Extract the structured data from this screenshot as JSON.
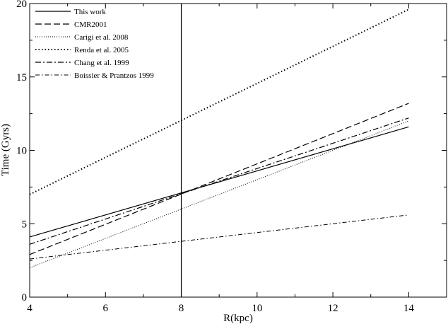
{
  "chart_data": {
    "type": "line",
    "title": "",
    "xlabel": "R(kpc)",
    "ylabel": "Time (Gyrs)",
    "xlim": [
      4,
      15
    ],
    "ylim": [
      0,
      20
    ],
    "xticks": [
      4,
      6,
      8,
      10,
      12,
      14
    ],
    "yticks": [
      0,
      5,
      10,
      15,
      20
    ],
    "grid": false,
    "legend_position": "top-left",
    "reference_line": {
      "x": 8
    },
    "series": [
      {
        "name": "This work",
        "style": "solid",
        "x": [
          4,
          14
        ],
        "y": [
          4.1,
          11.6
        ]
      },
      {
        "name": "CMR2001",
        "style": "dashed",
        "x": [
          4,
          14
        ],
        "y": [
          2.9,
          13.2
        ]
      },
      {
        "name": "Carigi et al. 2008",
        "style": "dotted-fine",
        "x": [
          4,
          14
        ],
        "y": [
          2.0,
          12.0
        ]
      },
      {
        "name": "Renda et al. 2005",
        "style": "dotted",
        "x": [
          4,
          14
        ],
        "y": [
          7.0,
          19.6
        ]
      },
      {
        "name": "Chang et al. 1999",
        "style": "dashdot",
        "x": [
          4,
          14
        ],
        "y": [
          3.6,
          12.2
        ]
      },
      {
        "name": "Boissier & Prantzos 1999",
        "style": "dashdot-fine",
        "x": [
          4,
          14
        ],
        "y": [
          2.6,
          5.6
        ]
      }
    ]
  }
}
